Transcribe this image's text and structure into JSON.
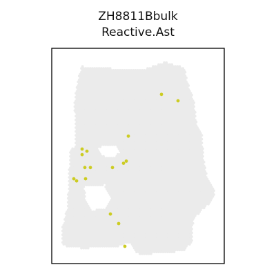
{
  "chart_data": {
    "type": "scatter",
    "title_lines": [
      "ZH8811Bbulk",
      "Reactive.Ast"
    ],
    "xlabel": "",
    "ylabel": "",
    "axes_visible": false,
    "grid": false,
    "legend": "none",
    "xlim": [
      0,
      100
    ],
    "ylim": [
      0,
      100
    ],
    "background_spot_color": "#ebebeb",
    "highlight_color": "#cccc22",
    "highlight_points": [
      {
        "x": 63.6,
        "y": 78.6
      },
      {
        "x": 73.2,
        "y": 75.6
      },
      {
        "x": 44.4,
        "y": 59.2
      },
      {
        "x": 17.6,
        "y": 53.2
      },
      {
        "x": 20.4,
        "y": 52.2
      },
      {
        "x": 17.6,
        "y": 50.6
      },
      {
        "x": 43.2,
        "y": 47.6
      },
      {
        "x": 41.6,
        "y": 46.6
      },
      {
        "x": 19.2,
        "y": 44.6
      },
      {
        "x": 22.4,
        "y": 44.6
      },
      {
        "x": 35.2,
        "y": 44.6
      },
      {
        "x": 19.6,
        "y": 39.4
      },
      {
        "x": 12.8,
        "y": 39.4
      },
      {
        "x": 14.4,
        "y": 38.4
      },
      {
        "x": 34.0,
        "y": 23.0
      },
      {
        "x": 38.8,
        "y": 18.6
      },
      {
        "x": 42.4,
        "y": 8.0
      }
    ]
  }
}
